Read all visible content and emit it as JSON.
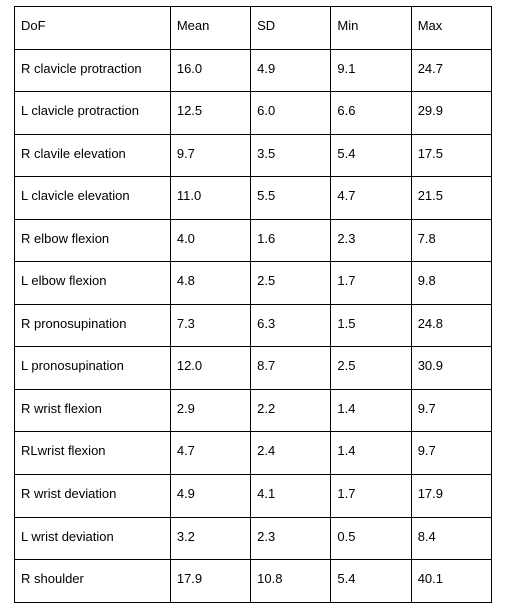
{
  "table": {
    "type": "table",
    "columns": [
      "DoF",
      "Mean",
      "SD",
      "Min",
      "Max"
    ],
    "col_widths_pct": [
      33,
      17,
      17,
      17,
      17
    ],
    "border_color": "#000000",
    "background_color": "#ffffff",
    "text_color": "#000000",
    "font_family": "Arial",
    "header_fontsize": 13,
    "cell_fontsize": 13,
    "rows": [
      [
        "R clavicle protraction",
        "16.0",
        "4.9",
        "9.1",
        "24.7"
      ],
      [
        "L clavicle protraction",
        "12.5",
        "6.0",
        "6.6",
        "29.9"
      ],
      [
        "R clavile elevation",
        "9.7",
        "3.5",
        "5.4",
        "17.5"
      ],
      [
        "L clavicle elevation",
        "11.0",
        "5.5",
        "4.7",
        "21.5"
      ],
      [
        "R elbow flexion",
        "4.0",
        "1.6",
        "2.3",
        "7.8"
      ],
      [
        "L elbow flexion",
        "4.8",
        "2.5",
        "1.7",
        "9.8"
      ],
      [
        "R pronosupination",
        "7.3",
        "6.3",
        "1.5",
        "24.8"
      ],
      [
        "L pronosupination",
        "12.0",
        "8.7",
        "2.5",
        "30.9"
      ],
      [
        "R wrist flexion",
        "2.9",
        "2.2",
        "1.4",
        "9.7"
      ],
      [
        "RLwrist flexion",
        "4.7",
        "2.4",
        "1.4",
        "9.7"
      ],
      [
        "R wrist deviation",
        "4.9",
        "4.1",
        "1.7",
        "17.9"
      ],
      [
        "L wrist deviation",
        "3.2",
        "2.3",
        "0.5",
        "8.4"
      ],
      [
        "R shoulder",
        "17.9",
        "10.8",
        "5.4",
        "40.1"
      ]
    ]
  }
}
